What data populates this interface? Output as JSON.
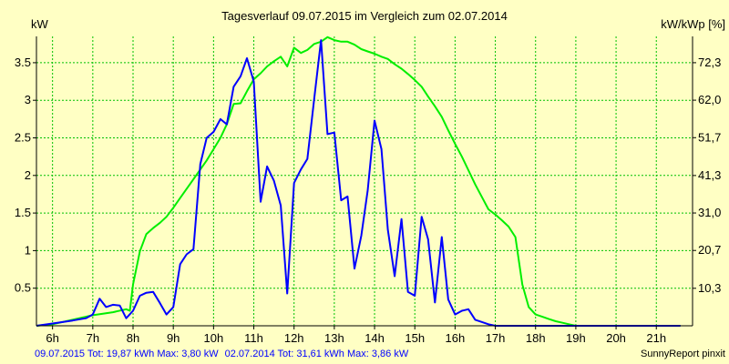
{
  "chart_data": {
    "type": "line",
    "title": "Tagesverlauf 09.07.2015 im Vergleich zum 02.07.2014",
    "ylabel_left": "kW",
    "ylabel_right": "kW/kWp [%]",
    "x_ticks": [
      "6h",
      "7h",
      "8h",
      "9h",
      "10h",
      "11h",
      "12h",
      "13h",
      "14h",
      "15h",
      "16h",
      "17h",
      "18h",
      "19h",
      "20h",
      "21h"
    ],
    "xlim": [
      5.6,
      21.9
    ],
    "y_ticks": [
      0.5,
      1,
      1.5,
      2,
      2.5,
      3,
      3.5
    ],
    "y_tick_labels": [
      "0.5",
      "1",
      "1.5",
      "2",
      "2.5",
      "3",
      "3.5"
    ],
    "ylim": [
      0,
      3.85
    ],
    "y2_ticks": [
      10.3,
      20.7,
      31.0,
      41.3,
      51.7,
      62.0,
      72.3
    ],
    "y2_tick_labels": [
      "10,3",
      "20,7",
      "31,0",
      "41,3",
      "51,7",
      "62,0",
      "72,3"
    ],
    "grid": true,
    "colors": {
      "background": "#FFFFC4",
      "grid": "#00C000",
      "series_2015": "#0000FF",
      "series_2014": "#00EE00"
    },
    "series": [
      {
        "name": "09.07.2015",
        "color": "#0000FF",
        "x": [
          5.6,
          6.0,
          6.5,
          6.83,
          7.0,
          7.17,
          7.33,
          7.5,
          7.67,
          7.83,
          8.0,
          8.17,
          8.33,
          8.5,
          8.67,
          8.83,
          9.0,
          9.17,
          9.33,
          9.5,
          9.67,
          9.83,
          10.0,
          10.17,
          10.33,
          10.5,
          10.67,
          10.83,
          11.0,
          11.17,
          11.33,
          11.5,
          11.67,
          11.83,
          12.0,
          12.17,
          12.33,
          12.5,
          12.67,
          12.83,
          13.0,
          13.17,
          13.33,
          13.5,
          13.67,
          13.83,
          14.0,
          14.17,
          14.33,
          14.5,
          14.67,
          14.83,
          15.0,
          15.17,
          15.33,
          15.5,
          15.67,
          15.83,
          16.0,
          16.17,
          16.33,
          16.5,
          16.67,
          16.83,
          17.0,
          17.17,
          17.33,
          17.5,
          17.67,
          17.83,
          18.0,
          18.17,
          18.33,
          18.5,
          18.67,
          18.83,
          19.0,
          19.17,
          19.33,
          19.5,
          19.67,
          19.83,
          20.0,
          20.17,
          20.33,
          20.5,
          20.67,
          20.83,
          21.0,
          21.33,
          21.6
        ],
        "values": [
          0.0,
          0.03,
          0.07,
          0.1,
          0.15,
          0.36,
          0.25,
          0.28,
          0.27,
          0.1,
          0.2,
          0.4,
          0.44,
          0.45,
          0.3,
          0.15,
          0.25,
          0.82,
          0.95,
          1.02,
          2.15,
          2.5,
          2.58,
          2.75,
          2.68,
          3.18,
          3.32,
          3.56,
          3.25,
          1.65,
          2.12,
          1.93,
          1.6,
          0.43,
          1.9,
          2.08,
          2.22,
          3.02,
          3.8,
          2.55,
          2.57,
          1.67,
          1.72,
          0.76,
          1.2,
          1.8,
          2.73,
          2.35,
          1.28,
          0.66,
          1.42,
          0.45,
          0.4,
          1.45,
          1.15,
          0.31,
          1.18,
          0.35,
          0.15,
          0.2,
          0.22,
          0.08,
          0.05,
          0.02,
          0.0,
          0.0,
          0.0,
          0.0,
          0.0,
          0.0,
          0.0,
          0.0,
          0.0,
          0.0,
          0.0,
          0.0,
          0.0,
          0.0,
          0.0,
          0.0,
          0.0,
          0.0,
          0.0,
          0.0,
          0.0,
          0.0,
          0.0,
          0.0,
          0.0,
          0.0,
          0.0
        ]
      },
      {
        "name": "02.07.2014",
        "color": "#00EE00",
        "x": [
          5.6,
          6.0,
          6.5,
          7.0,
          7.5,
          7.83,
          7.92,
          8.0,
          8.17,
          8.33,
          8.5,
          8.67,
          8.83,
          9.0,
          9.17,
          9.5,
          9.83,
          10.0,
          10.17,
          10.33,
          10.5,
          10.67,
          10.83,
          11.0,
          11.17,
          11.33,
          11.5,
          11.67,
          11.83,
          12.0,
          12.17,
          12.33,
          12.5,
          12.67,
          12.83,
          13.0,
          13.17,
          13.33,
          13.5,
          13.67,
          13.83,
          14.0,
          14.17,
          14.33,
          14.5,
          14.67,
          14.83,
          15.0,
          15.17,
          15.33,
          15.5,
          15.67,
          15.83,
          16.0,
          16.17,
          16.33,
          16.5,
          16.67,
          16.83,
          17.0,
          17.17,
          17.33,
          17.5,
          17.67,
          17.83,
          18.0,
          18.17,
          18.33,
          18.5,
          18.67,
          18.83,
          19.0,
          19.17,
          19.33,
          19.5,
          19.67,
          19.83,
          20.0,
          20.17,
          20.33,
          20.5,
          20.67,
          20.83,
          21.0,
          21.33,
          21.6
        ],
        "values": [
          0.0,
          0.02,
          0.08,
          0.14,
          0.18,
          0.22,
          0.2,
          0.55,
          0.99,
          1.22,
          1.3,
          1.37,
          1.45,
          1.57,
          1.7,
          1.95,
          2.2,
          2.35,
          2.5,
          2.68,
          2.95,
          2.96,
          3.12,
          3.28,
          3.36,
          3.45,
          3.52,
          3.58,
          3.45,
          3.7,
          3.63,
          3.67,
          3.75,
          3.78,
          3.84,
          3.8,
          3.78,
          3.78,
          3.74,
          3.68,
          3.65,
          3.62,
          3.58,
          3.55,
          3.48,
          3.42,
          3.35,
          3.27,
          3.18,
          3.05,
          2.92,
          2.78,
          2.6,
          2.42,
          2.25,
          2.07,
          1.88,
          1.71,
          1.55,
          1.48,
          1.4,
          1.32,
          1.18,
          0.55,
          0.25,
          0.15,
          0.12,
          0.09,
          0.06,
          0.04,
          0.02,
          0.0,
          0.0,
          0.0,
          0.0,
          0.0,
          0.0,
          0.0,
          0.0,
          0.0,
          0.0,
          0.0,
          0.0,
          0.0,
          0.0,
          0.0
        ]
      }
    ],
    "footer": {
      "series1_text": "09.07.2015 Tot: 19,87 kWh Max: 3,80 kW",
      "series2_text": "02.07.2014 Tot: 31,61 kWh Max: 3,86 kW",
      "credit": "SunnyReport pinxit"
    }
  }
}
